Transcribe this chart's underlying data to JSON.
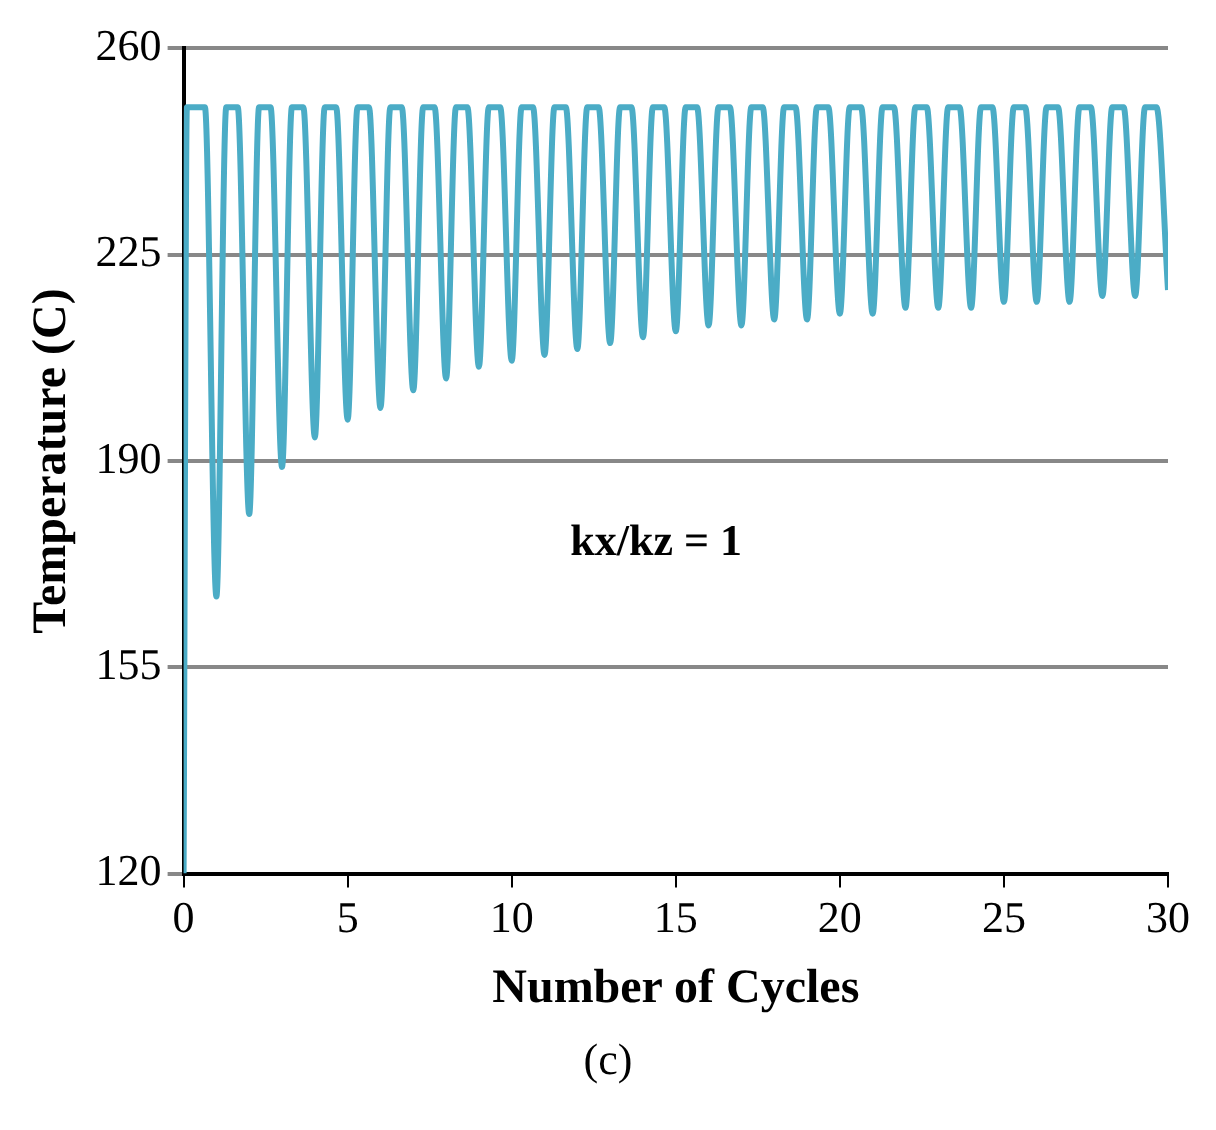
{
  "chart_data": {
    "type": "line",
    "xlabel": "Number of Cycles",
    "ylabel": "Temperature (C)",
    "x": [
      0,
      0.1,
      0.65,
      1,
      1.3,
      1.65,
      2,
      2.3,
      2.65,
      3,
      3.3,
      3.65,
      4,
      4.3,
      4.65,
      5,
      5.3,
      5.65,
      6,
      6.3,
      6.65,
      7,
      7.3,
      7.65,
      8,
      8.3,
      8.65,
      9,
      9.3,
      9.65,
      10,
      10.3,
      10.65,
      11,
      11.3,
      11.65,
      12,
      12.3,
      12.65,
      13,
      13.3,
      13.65,
      14,
      14.3,
      14.65,
      15,
      15.3,
      15.65,
      16,
      16.3,
      16.65,
      17,
      17.3,
      17.65,
      18,
      18.3,
      18.65,
      19,
      19.3,
      19.65,
      20,
      20.3,
      20.65,
      21,
      21.3,
      21.65,
      22,
      22.3,
      22.65,
      23,
      23.3,
      23.65,
      24,
      24.3,
      24.65,
      25,
      25.3,
      25.65,
      26,
      26.3,
      26.65,
      27,
      27.3,
      27.65,
      28,
      28.3,
      28.65,
      29,
      29.3,
      29.65,
      30
    ],
    "series": [
      {
        "color": "#4bacc6",
        "values": [
          120,
          250,
          250,
          167,
          250,
          250,
          181,
          250,
          250,
          189,
          250,
          250,
          194,
          250,
          250,
          197,
          250,
          250,
          199,
          250,
          250,
          202,
          250,
          250,
          204,
          250,
          250,
          206,
          250,
          250,
          207,
          250,
          250,
          208,
          250,
          250,
          209,
          250,
          250,
          210,
          250,
          250,
          211,
          250,
          250,
          212,
          250,
          250,
          213,
          250,
          250,
          213,
          250,
          250,
          214,
          250,
          250,
          214,
          250,
          250,
          215,
          250,
          250,
          215,
          250,
          250,
          216,
          250,
          250,
          216,
          250,
          250,
          216,
          250,
          250,
          217,
          250,
          250,
          217,
          250,
          250,
          217,
          250,
          250,
          218,
          250,
          250,
          218,
          250,
          250,
          219
        ]
      }
    ],
    "xlim": [
      0,
      30
    ],
    "xticks": [
      0,
      5,
      10,
      15,
      20,
      25,
      30
    ],
    "ylim": [
      120,
      260
    ],
    "yticks": [
      120,
      155,
      190,
      225,
      260
    ],
    "grid": "y",
    "legend": false,
    "marker": "none",
    "line_style": "solid",
    "annotations": [
      "kx/kz = 1",
      "(c)"
    ]
  }
}
